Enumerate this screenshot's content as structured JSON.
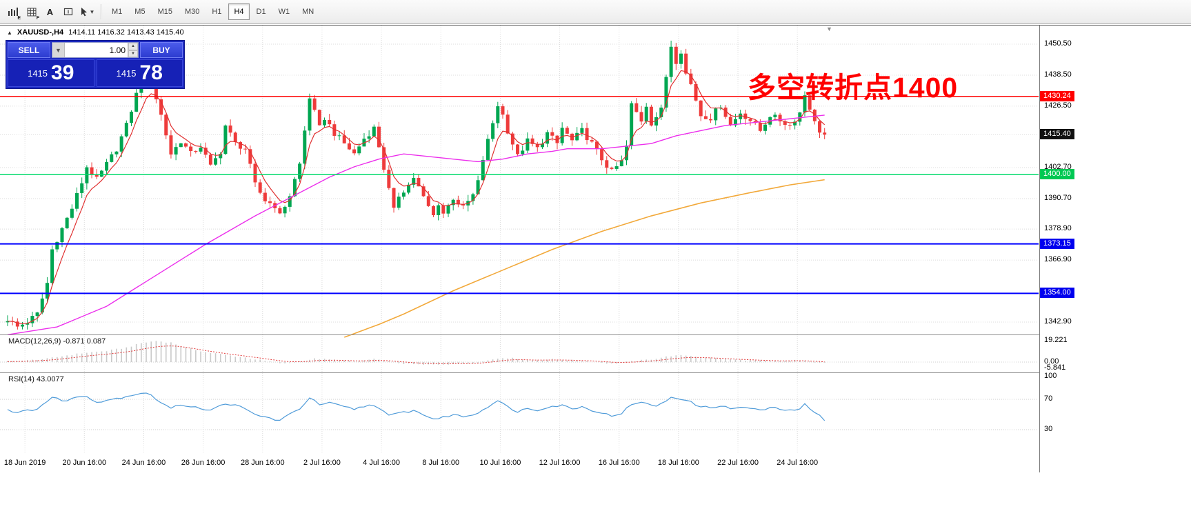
{
  "toolbar": {
    "icon_badges": [
      "E",
      "F"
    ],
    "text_tool_label": "A",
    "timeframes": [
      {
        "label": "M1",
        "active": false
      },
      {
        "label": "M5",
        "active": false
      },
      {
        "label": "M15",
        "active": false
      },
      {
        "label": "M30",
        "active": false
      },
      {
        "label": "H1",
        "active": false
      },
      {
        "label": "H4",
        "active": true
      },
      {
        "label": "D1",
        "active": false
      },
      {
        "label": "W1",
        "active": false
      },
      {
        "label": "MN",
        "active": false
      }
    ]
  },
  "trade_panel": {
    "sell_label": "SELL",
    "buy_label": "BUY",
    "volume": "1.00",
    "bid_small": "1415",
    "bid_big": "39",
    "ask_small": "1415",
    "ask_big": "78"
  },
  "chart": {
    "symbol_period": "XAUUSD-,H4",
    "ohlc": "1414.11 1416.32 1413.43 1415.40",
    "annotation": "多空转折点1400",
    "price_axis": [
      {
        "text": "1450.50",
        "price": 1450.5
      },
      {
        "text": "1438.50",
        "price": 1438.5
      },
      {
        "text": "1426.50",
        "price": 1426.5
      },
      {
        "text": "1402.70",
        "price": 1402.7
      },
      {
        "text": "1390.70",
        "price": 1390.7
      },
      {
        "text": "1378.90",
        "price": 1378.9
      },
      {
        "text": "1366.90",
        "price": 1366.9
      },
      {
        "text": "1342.90",
        "price": 1342.9
      }
    ],
    "grid_prices": [
      1450.5,
      1438.5,
      1426.5,
      1415.4,
      1402.7,
      1390.7,
      1378.9,
      1366.9,
      1354.0,
      1342.9
    ],
    "price_markers": [
      {
        "text": "1430.24",
        "price": 1430.24,
        "bg": "#ff0000"
      },
      {
        "text": "1415.40",
        "price": 1415.4,
        "bg": "#111111"
      },
      {
        "text": "1400.00",
        "price": 1400.0,
        "bg": "#00c853"
      },
      {
        "text": "1373.15",
        "price": 1373.15,
        "bg": "#0000ee"
      },
      {
        "text": "1354.00",
        "price": 1354.0,
        "bg": "#0000ee"
      }
    ],
    "hlines": [
      {
        "price": 1430.24,
        "color": "#ff0000",
        "width": 1.4
      },
      {
        "price": 1400.0,
        "color": "#00d96a",
        "width": 1.6
      },
      {
        "price": 1373.15,
        "color": "#0000ff",
        "width": 2
      },
      {
        "price": 1354.0,
        "color": "#0000ff",
        "width": 2
      }
    ],
    "time_labels": [
      "18 Jun 2019",
      "20 Jun 16:00",
      "24 Jun 16:00",
      "26 Jun 16:00",
      "28 Jun 16:00",
      "2 Jul 16:00",
      "4 Jul 16:00",
      "8 Jul 16:00",
      "10 Jul 16:00",
      "12 Jul 16:00",
      "16 Jul 16:00",
      "18 Jul 16:00",
      "22 Jul 16:00",
      "24 Jul 16:00"
    ]
  },
  "macd": {
    "label": "MACD(12,26,9) -0.871 0.087",
    "axis": [
      {
        "text": "19.221",
        "value": 19.221
      },
      {
        "text": "0.00",
        "value": 0
      },
      {
        "text": "-5.841",
        "value": -5.841
      }
    ]
  },
  "rsi": {
    "label": "RSI(14) 43.0077",
    "axis": [
      {
        "text": "100",
        "value": 100
      },
      {
        "text": "70",
        "value": 70
      },
      {
        "text": "30",
        "value": 30
      }
    ],
    "levels": [
      70,
      30
    ]
  },
  "colors": {
    "up": "#00a651",
    "down": "#ee3b3b",
    "ma_fast": "#e03030",
    "ma_mid": "#ec2fec",
    "ma_slow": "#f2a93b",
    "macd_hist": "#c9c9c9",
    "macd_signal": "#e23b3b",
    "rsi": "#4f9bd9",
    "grid": "#dcdcdc",
    "panel_blue": "#1d2ac1"
  },
  "chart_data": {
    "type": "candlestick",
    "symbol": "XAUUSD",
    "timeframe": "H4",
    "bars": 166,
    "price_range": [
      1339.2,
      1457.7
    ],
    "close_keypoints": [
      [
        0,
        1344
      ],
      [
        2,
        1341
      ],
      [
        4,
        1343
      ],
      [
        6,
        1346
      ],
      [
        8,
        1358
      ],
      [
        9,
        1371
      ],
      [
        11,
        1379
      ],
      [
        13,
        1387
      ],
      [
        15,
        1397
      ],
      [
        16,
        1403
      ],
      [
        18,
        1398
      ],
      [
        20,
        1404
      ],
      [
        22,
        1410
      ],
      [
        24,
        1419
      ],
      [
        26,
        1431
      ],
      [
        28,
        1438
      ],
      [
        29,
        1436
      ],
      [
        31,
        1423
      ],
      [
        33,
        1408
      ],
      [
        35,
        1413
      ],
      [
        37,
        1408
      ],
      [
        39,
        1411
      ],
      [
        41,
        1403
      ],
      [
        43,
        1409
      ],
      [
        44,
        1419
      ],
      [
        46,
        1412
      ],
      [
        48,
        1410
      ],
      [
        50,
        1396
      ],
      [
        52,
        1390
      ],
      [
        54,
        1388
      ],
      [
        55,
        1384
      ],
      [
        57,
        1392
      ],
      [
        59,
        1404
      ],
      [
        61,
        1430
      ],
      [
        62,
        1424
      ],
      [
        63,
        1418
      ],
      [
        64,
        1422
      ],
      [
        66,
        1416
      ],
      [
        68,
        1412
      ],
      [
        70,
        1408
      ],
      [
        72,
        1414
      ],
      [
        74,
        1418
      ],
      [
        75,
        1411
      ],
      [
        77,
        1394
      ],
      [
        78,
        1386
      ],
      [
        79,
        1392
      ],
      [
        81,
        1396
      ],
      [
        82,
        1399
      ],
      [
        84,
        1391
      ],
      [
        86,
        1384
      ],
      [
        87,
        1389
      ],
      [
        88,
        1385
      ],
      [
        90,
        1391
      ],
      [
        92,
        1387
      ],
      [
        94,
        1392
      ],
      [
        95,
        1397
      ],
      [
        96,
        1406
      ],
      [
        98,
        1420
      ],
      [
        99,
        1427
      ],
      [
        100,
        1423
      ],
      [
        101,
        1417
      ],
      [
        103,
        1407
      ],
      [
        105,
        1413
      ],
      [
        107,
        1410
      ],
      [
        109,
        1416
      ],
      [
        111,
        1412
      ],
      [
        112,
        1418
      ],
      [
        114,
        1413
      ],
      [
        116,
        1417
      ],
      [
        118,
        1412
      ],
      [
        120,
        1406
      ],
      [
        122,
        1401
      ],
      [
        124,
        1405
      ],
      [
        125,
        1411
      ],
      [
        126,
        1427
      ],
      [
        128,
        1421
      ],
      [
        129,
        1427
      ],
      [
        130,
        1420
      ],
      [
        132,
        1425
      ],
      [
        133,
        1438
      ],
      [
        134,
        1450
      ],
      [
        135,
        1444
      ],
      [
        136,
        1448
      ],
      [
        137,
        1439
      ],
      [
        138,
        1435
      ],
      [
        139,
        1429
      ],
      [
        140,
        1423
      ],
      [
        142,
        1422
      ],
      [
        144,
        1427
      ],
      [
        146,
        1419
      ],
      [
        148,
        1424
      ],
      [
        150,
        1421
      ],
      [
        152,
        1417
      ],
      [
        154,
        1423
      ],
      [
        156,
        1421
      ],
      [
        158,
        1419
      ],
      [
        160,
        1424
      ],
      [
        161,
        1431
      ],
      [
        162,
        1426
      ],
      [
        163,
        1420
      ],
      [
        164,
        1417
      ],
      [
        165,
        1415.4
      ]
    ],
    "ma_mid_keypoints": [
      [
        0,
        1338
      ],
      [
        10,
        1341
      ],
      [
        20,
        1349
      ],
      [
        30,
        1361
      ],
      [
        40,
        1373
      ],
      [
        50,
        1384
      ],
      [
        55,
        1389
      ],
      [
        60,
        1394
      ],
      [
        65,
        1399
      ],
      [
        70,
        1403
      ],
      [
        75,
        1406
      ],
      [
        80,
        1408
      ],
      [
        85,
        1407
      ],
      [
        90,
        1406
      ],
      [
        95,
        1405
      ],
      [
        100,
        1406
      ],
      [
        105,
        1408
      ],
      [
        110,
        1409
      ],
      [
        113,
        1410
      ],
      [
        120,
        1410
      ],
      [
        125,
        1411
      ],
      [
        130,
        1412
      ],
      [
        135,
        1415
      ],
      [
        140,
        1417
      ],
      [
        145,
        1419
      ],
      [
        150,
        1420
      ],
      [
        155,
        1421
      ],
      [
        160,
        1422
      ],
      [
        165,
        1423
      ]
    ],
    "ma_slow_keypoints": [
      [
        68,
        1337
      ],
      [
        75,
        1342
      ],
      [
        80,
        1346
      ],
      [
        90,
        1355
      ],
      [
        100,
        1363
      ],
      [
        110,
        1371
      ],
      [
        120,
        1378
      ],
      [
        130,
        1384
      ],
      [
        140,
        1389
      ],
      [
        150,
        1393
      ],
      [
        158,
        1396
      ],
      [
        165,
        1398
      ]
    ],
    "macd_keypoints": [
      [
        0,
        0.5
      ],
      [
        4,
        1.5
      ],
      [
        8,
        3
      ],
      [
        12,
        6
      ],
      [
        16,
        8.5
      ],
      [
        20,
        10
      ],
      [
        24,
        13
      ],
      [
        27,
        17
      ],
      [
        30,
        19
      ],
      [
        33,
        17.5
      ],
      [
        36,
        13
      ],
      [
        40,
        9
      ],
      [
        44,
        6.5
      ],
      [
        48,
        4
      ],
      [
        52,
        1
      ],
      [
        56,
        -1.5
      ],
      [
        59,
        0.5
      ],
      [
        62,
        3
      ],
      [
        66,
        2
      ],
      [
        70,
        0.5
      ],
      [
        74,
        2.5
      ],
      [
        77,
        0.5
      ],
      [
        80,
        -1.5
      ],
      [
        84,
        -2.5
      ],
      [
        88,
        -2
      ],
      [
        92,
        -1.5
      ],
      [
        95,
        -0.5
      ],
      [
        98,
        2.5
      ],
      [
        100,
        4
      ],
      [
        103,
        3
      ],
      [
        106,
        1.5
      ],
      [
        110,
        2.5
      ],
      [
        114,
        1.5
      ],
      [
        118,
        0.5
      ],
      [
        122,
        -1.5
      ],
      [
        126,
        0.5
      ],
      [
        130,
        2.5
      ],
      [
        134,
        5.5
      ],
      [
        137,
        6
      ],
      [
        140,
        4.5
      ],
      [
        144,
        3
      ],
      [
        148,
        2
      ],
      [
        152,
        1.2
      ],
      [
        156,
        0.8
      ],
      [
        159,
        1.8
      ],
      [
        162,
        0.5
      ],
      [
        165,
        -0.9
      ]
    ],
    "rsi_keypoints": [
      [
        0,
        57
      ],
      [
        2,
        52
      ],
      [
        4,
        55
      ],
      [
        6,
        58
      ],
      [
        9,
        72
      ],
      [
        12,
        68
      ],
      [
        14,
        73
      ],
      [
        16,
        75
      ],
      [
        18,
        66
      ],
      [
        20,
        69
      ],
      [
        22,
        71
      ],
      [
        26,
        77
      ],
      [
        28,
        79
      ],
      [
        31,
        66
      ],
      [
        33,
        58
      ],
      [
        35,
        63
      ],
      [
        38,
        60
      ],
      [
        41,
        55
      ],
      [
        44,
        65
      ],
      [
        47,
        60
      ],
      [
        50,
        50
      ],
      [
        53,
        45
      ],
      [
        55,
        42
      ],
      [
        57,
        50
      ],
      [
        59,
        58
      ],
      [
        61,
        72
      ],
      [
        63,
        63
      ],
      [
        65,
        65
      ],
      [
        68,
        60
      ],
      [
        70,
        57
      ],
      [
        72,
        61
      ],
      [
        74,
        63
      ],
      [
        77,
        48
      ],
      [
        79,
        52
      ],
      [
        82,
        55
      ],
      [
        84,
        50
      ],
      [
        86,
        44
      ],
      [
        88,
        46
      ],
      [
        90,
        50
      ],
      [
        92,
        47
      ],
      [
        95,
        52
      ],
      [
        98,
        65
      ],
      [
        99,
        68
      ],
      [
        101,
        60
      ],
      [
        103,
        54
      ],
      [
        105,
        58
      ],
      [
        107,
        56
      ],
      [
        109,
        60
      ],
      [
        112,
        62
      ],
      [
        114,
        58
      ],
      [
        116,
        60
      ],
      [
        118,
        56
      ],
      [
        120,
        52
      ],
      [
        122,
        48
      ],
      [
        124,
        52
      ],
      [
        126,
        63
      ],
      [
        129,
        66
      ],
      [
        131,
        60
      ],
      [
        133,
        68
      ],
      [
        134,
        73
      ],
      [
        136,
        71
      ],
      [
        138,
        66
      ],
      [
        140,
        60
      ],
      [
        142,
        59
      ],
      [
        144,
        62
      ],
      [
        146,
        57
      ],
      [
        148,
        60
      ],
      [
        150,
        58
      ],
      [
        152,
        55
      ],
      [
        154,
        59
      ],
      [
        156,
        57
      ],
      [
        158,
        55
      ],
      [
        160,
        58
      ],
      [
        161,
        63
      ],
      [
        163,
        52
      ],
      [
        164,
        48
      ],
      [
        165,
        43
      ]
    ]
  }
}
